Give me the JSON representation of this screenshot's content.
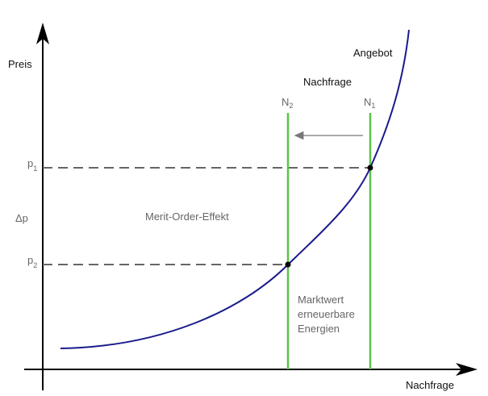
{
  "axes": {
    "y_label": "Preis",
    "x_label": "Nachfrage"
  },
  "curves": {
    "supply_label": "Angebot",
    "demand_label": "Nachfrage"
  },
  "demand_lines": [
    {
      "letter": "N",
      "sub": "2"
    },
    {
      "letter": "N",
      "sub": "1"
    }
  ],
  "price_levels": [
    {
      "letter": "p",
      "sub": "1"
    },
    {
      "letter": "p",
      "sub": "2"
    }
  ],
  "delta_label": "Δp",
  "effect_label": "Merit-Order-Effekt",
  "market_value_label": [
    "Marktwert",
    "erneuerbare",
    "Energien"
  ]
}
